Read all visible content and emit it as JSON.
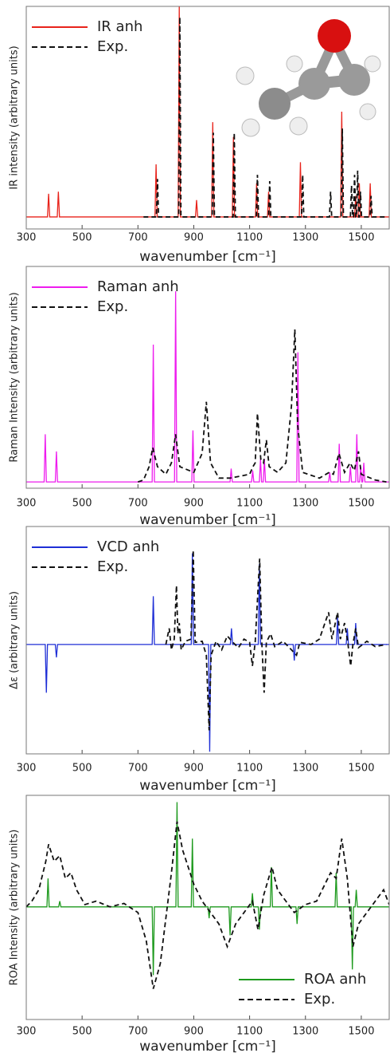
{
  "chart_data": [
    {
      "type": "line",
      "xlabel": "wavenumber [cm⁻¹]",
      "ylabel": "IR intensity (arbitrary units)",
      "legend": "upper left",
      "xlim": [
        300,
        1600
      ],
      "xticks": [
        300,
        500,
        700,
        900,
        1100,
        1300,
        1500
      ],
      "ylim": [
        -0.057,
        1
      ],
      "series": [
        {
          "name": "IR anh",
          "color": "#e8231b",
          "linestyle": "solid",
          "x": [
            300,
            376,
            380,
            384,
            411,
            415,
            419,
            761,
            765,
            769,
            844,
            848,
            852,
            906,
            910,
            914,
            964,
            968,
            972,
            1038,
            1042,
            1046,
            1121,
            1125,
            1129,
            1164,
            1168,
            1172,
            1278,
            1282,
            1286,
            1426,
            1430,
            1434,
            1476,
            1480,
            1484,
            1489,
            1493,
            1497,
            1528,
            1532,
            1536,
            1600
          ],
          "values": [
            0,
            0,
            0.11,
            0,
            0,
            0.12,
            0,
            0,
            0.25,
            0,
            0,
            1,
            0,
            0,
            0.08,
            0,
            0,
            0.45,
            0,
            0,
            0.38,
            0,
            0,
            0.16,
            0,
            0,
            0.12,
            0,
            0,
            0.26,
            0,
            0,
            0.5,
            0,
            0,
            0.1,
            0,
            0,
            0.16,
            0,
            0,
            0.16,
            0,
            0
          ]
        },
        {
          "name": "Exp.",
          "color": "#111111",
          "linestyle": "dashed",
          "x": [
            720,
            766,
            770,
            774,
            846,
            850,
            854,
            966,
            970,
            974,
            1041,
            1045,
            1049,
            1124,
            1128,
            1132,
            1168,
            1172,
            1176,
            1286,
            1290,
            1294,
            1386,
            1390,
            1394,
            1428,
            1432,
            1436,
            1461,
            1465,
            1469,
            1472,
            1476,
            1480,
            1483,
            1487,
            1491,
            1493,
            1497,
            1501,
            1531,
            1535,
            1539,
            1590
          ],
          "values": [
            0,
            0,
            0.18,
            0,
            0,
            0.95,
            0,
            0,
            0.4,
            0,
            0,
            0.4,
            0,
            0,
            0.2,
            0,
            0,
            0.17,
            0,
            0,
            0.2,
            0,
            0,
            0.12,
            0,
            0,
            0.42,
            0,
            0,
            0.15,
            0,
            0,
            0.2,
            0,
            0,
            0.22,
            0,
            0,
            0.12,
            0,
            0,
            0.1,
            0,
            0
          ]
        }
      ]
    },
    {
      "type": "line",
      "xlabel": "wavenumber [cm⁻¹]",
      "ylabel": "Raman Intensity (arbitrary units)",
      "legend": "upper left",
      "xlim": [
        300,
        1600
      ],
      "xticks": [
        300,
        500,
        700,
        900,
        1100,
        1300,
        1500
      ],
      "ylim": [
        -0.033,
        1.13
      ],
      "series": [
        {
          "name": "Raman anh",
          "color": "#ee1cee",
          "linestyle": "solid",
          "x": [
            300,
            364,
            368,
            372,
            404,
            408,
            412,
            751,
            755,
            759,
            831,
            835,
            839,
            893,
            897,
            901,
            1030,
            1034,
            1038,
            1107,
            1111,
            1115,
            1135,
            1139,
            1143,
            1149,
            1153,
            1157,
            1269,
            1273,
            1277,
            1383,
            1387,
            1391,
            1417,
            1421,
            1425,
            1457,
            1461,
            1465,
            1480,
            1484,
            1488,
            1494,
            1498,
            1502,
            1505,
            1509,
            1513,
            1600
          ],
          "values": [
            0,
            0,
            0.25,
            0,
            0,
            0.16,
            0,
            0,
            0.72,
            0,
            0,
            1,
            0,
            0,
            0.27,
            0,
            0,
            0.07,
            0,
            0,
            0.06,
            0,
            0,
            0.12,
            0,
            0,
            0.12,
            0,
            0,
            0.68,
            0,
            0,
            0.05,
            0,
            0,
            0.2,
            0,
            0,
            0.08,
            0,
            0,
            0.25,
            0,
            0,
            0.08,
            0,
            0,
            0.1,
            0,
            0
          ]
        },
        {
          "name": "Exp.",
          "color": "#111111",
          "linestyle": "dashed",
          "x": [
            700,
            720,
            740,
            753,
            770,
            800,
            820,
            835,
            850,
            900,
            930,
            945,
            960,
            990,
            1030,
            1100,
            1112,
            1120,
            1128,
            1140,
            1150,
            1160,
            1170,
            1200,
            1230,
            1250,
            1262,
            1272,
            1290,
            1350,
            1385,
            1400,
            1420,
            1440,
            1460,
            1475,
            1490,
            1500,
            1550,
            1590
          ],
          "values": [
            0,
            0.01,
            0.08,
            0.18,
            0.08,
            0.04,
            0.1,
            0.25,
            0.08,
            0.05,
            0.15,
            0.42,
            0.1,
            0.02,
            0.02,
            0.04,
            0.08,
            0.1,
            0.36,
            0.12,
            0.1,
            0.22,
            0.08,
            0.05,
            0.1,
            0.4,
            0.8,
            0.3,
            0.05,
            0.02,
            0.05,
            0.04,
            0.15,
            0.05,
            0.1,
            0.06,
            0.16,
            0.04,
            0.01,
            0
          ]
        }
      ]
    },
    {
      "type": "line",
      "xlabel": "wavenumber [cm⁻¹]",
      "ylabel": "Δε  (arbitrary units)",
      "legend": "upper left",
      "xlim": [
        300,
        1600
      ],
      "xticks": [
        300,
        500,
        700,
        900,
        1100,
        1300,
        1500
      ],
      "ylim": [
        -1.02,
        1.1
      ],
      "series": [
        {
          "name": "VCD anh",
          "color": "#1f2fd6",
          "linestyle": "solid",
          "x": [
            300,
            368,
            372,
            376,
            404,
            408,
            412,
            751,
            755,
            759,
            891,
            895,
            899,
            953,
            957,
            961,
            1031,
            1035,
            1039,
            1131,
            1135,
            1139,
            1256,
            1260,
            1264,
            1411,
            1415,
            1419,
            1446,
            1450,
            1454,
            1476,
            1480,
            1484,
            1600
          ],
          "values": [
            0,
            0,
            -0.45,
            0,
            0,
            -0.12,
            0,
            0,
            0.45,
            0,
            0,
            0.85,
            0,
            0,
            -1,
            0,
            0,
            0.15,
            0,
            0,
            0.75,
            0,
            0,
            -0.15,
            0,
            0,
            0.25,
            0,
            0,
            0.15,
            0,
            0,
            0.2,
            0,
            0
          ]
        },
        {
          "name": "Exp.",
          "color": "#111111",
          "linestyle": "dashed",
          "x": [
            800,
            812,
            820,
            830,
            838,
            843,
            848,
            855,
            870,
            890,
            898,
            905,
            930,
            945,
            955,
            962,
            980,
            1000,
            1020,
            1040,
            1060,
            1080,
            1100,
            1110,
            1120,
            1136,
            1144,
            1152,
            1160,
            1175,
            1190,
            1220,
            1250,
            1268,
            1280,
            1320,
            1350,
            1383,
            1395,
            1415,
            1425,
            1440,
            1450,
            1462,
            1470,
            1480,
            1490,
            1520,
            1550,
            1590
          ],
          "values": [
            0,
            0.15,
            -0.05,
            0.05,
            0.55,
            0.1,
            0.2,
            -0.05,
            0.03,
            0.05,
            0.88,
            0.02,
            0.03,
            -0.1,
            -0.8,
            -0.1,
            0.03,
            -0.05,
            0.08,
            0.02,
            -0.03,
            0.05,
            0.02,
            -0.2,
            0.02,
            0.8,
            0,
            -0.45,
            0.02,
            0.1,
            -0.02,
            0.03,
            -0.05,
            -0.1,
            0.02,
            0,
            0.05,
            0.3,
            0.05,
            0.3,
            0.05,
            0.2,
            0.05,
            -0.2,
            0,
            0.15,
            -0.03,
            0.03,
            -0.02,
            0
          ]
        }
      ]
    },
    {
      "type": "line",
      "xlabel": "wavenumber [cm⁻¹]",
      "ylabel": "ROA Intensity (arbitrary units)",
      "legend": "lower right",
      "xlim": [
        300,
        1600
      ],
      "xticks": [
        300,
        500,
        700,
        900,
        1100,
        1300,
        1500
      ],
      "ylim": [
        -0.99,
        0.98
      ],
      "series": [
        {
          "name": "ROA anh",
          "color": "#1e9a1e",
          "linestyle": "solid",
          "x": [
            300,
            374,
            378,
            382,
            416,
            420,
            424,
            751,
            755,
            759,
            836,
            840,
            844,
            891,
            895,
            899,
            951,
            955,
            959,
            1026,
            1030,
            1034,
            1106,
            1110,
            1114,
            1131,
            1135,
            1139,
            1174,
            1178,
            1182,
            1266,
            1270,
            1274,
            1406,
            1410,
            1414,
            1464,
            1468,
            1472,
            1478,
            1482,
            1486,
            1600
          ],
          "values": [
            0,
            0,
            0.25,
            0,
            0,
            0.05,
            0,
            0,
            -0.6,
            0,
            0,
            0.92,
            0,
            0,
            0.6,
            0,
            0,
            -0.1,
            0,
            0,
            -0.25,
            0,
            0,
            0.12,
            0,
            0,
            -0.2,
            0,
            0,
            0.35,
            0,
            0,
            -0.15,
            0,
            0,
            0.3,
            0,
            0,
            -0.55,
            0,
            0,
            0.15,
            0,
            0
          ]
        },
        {
          "name": "Exp.",
          "color": "#111111",
          "linestyle": "dashed",
          "x": [
            300,
            320,
            345,
            370,
            380,
            400,
            420,
            440,
            460,
            480,
            510,
            550,
            600,
            650,
            700,
            730,
            755,
            780,
            800,
            820,
            840,
            860,
            880,
            900,
            930,
            960,
            990,
            1020,
            1050,
            1080,
            1110,
            1130,
            1150,
            1180,
            1200,
            1230,
            1260,
            1300,
            1340,
            1370,
            1390,
            1410,
            1430,
            1450,
            1470,
            1490,
            1520,
            1550,
            1580,
            1600
          ],
          "values": [
            0,
            0.05,
            0.15,
            0.4,
            0.55,
            0.4,
            0.45,
            0.25,
            0.3,
            0.15,
            0.02,
            0.05,
            0,
            0.03,
            -0.05,
            -0.3,
            -0.72,
            -0.5,
            -0.1,
            0.3,
            0.75,
            0.5,
            0.35,
            0.2,
            0.05,
            -0.05,
            -0.15,
            -0.35,
            -0.15,
            -0.05,
            0.05,
            -0.2,
            0.1,
            0.35,
            0.15,
            0.05,
            -0.05,
            0.02,
            0.05,
            0.2,
            0.3,
            0.25,
            0.6,
            0.25,
            -0.35,
            -0.15,
            -0.05,
            0.05,
            0.15,
            0.02
          ]
        }
      ]
    }
  ]
}
